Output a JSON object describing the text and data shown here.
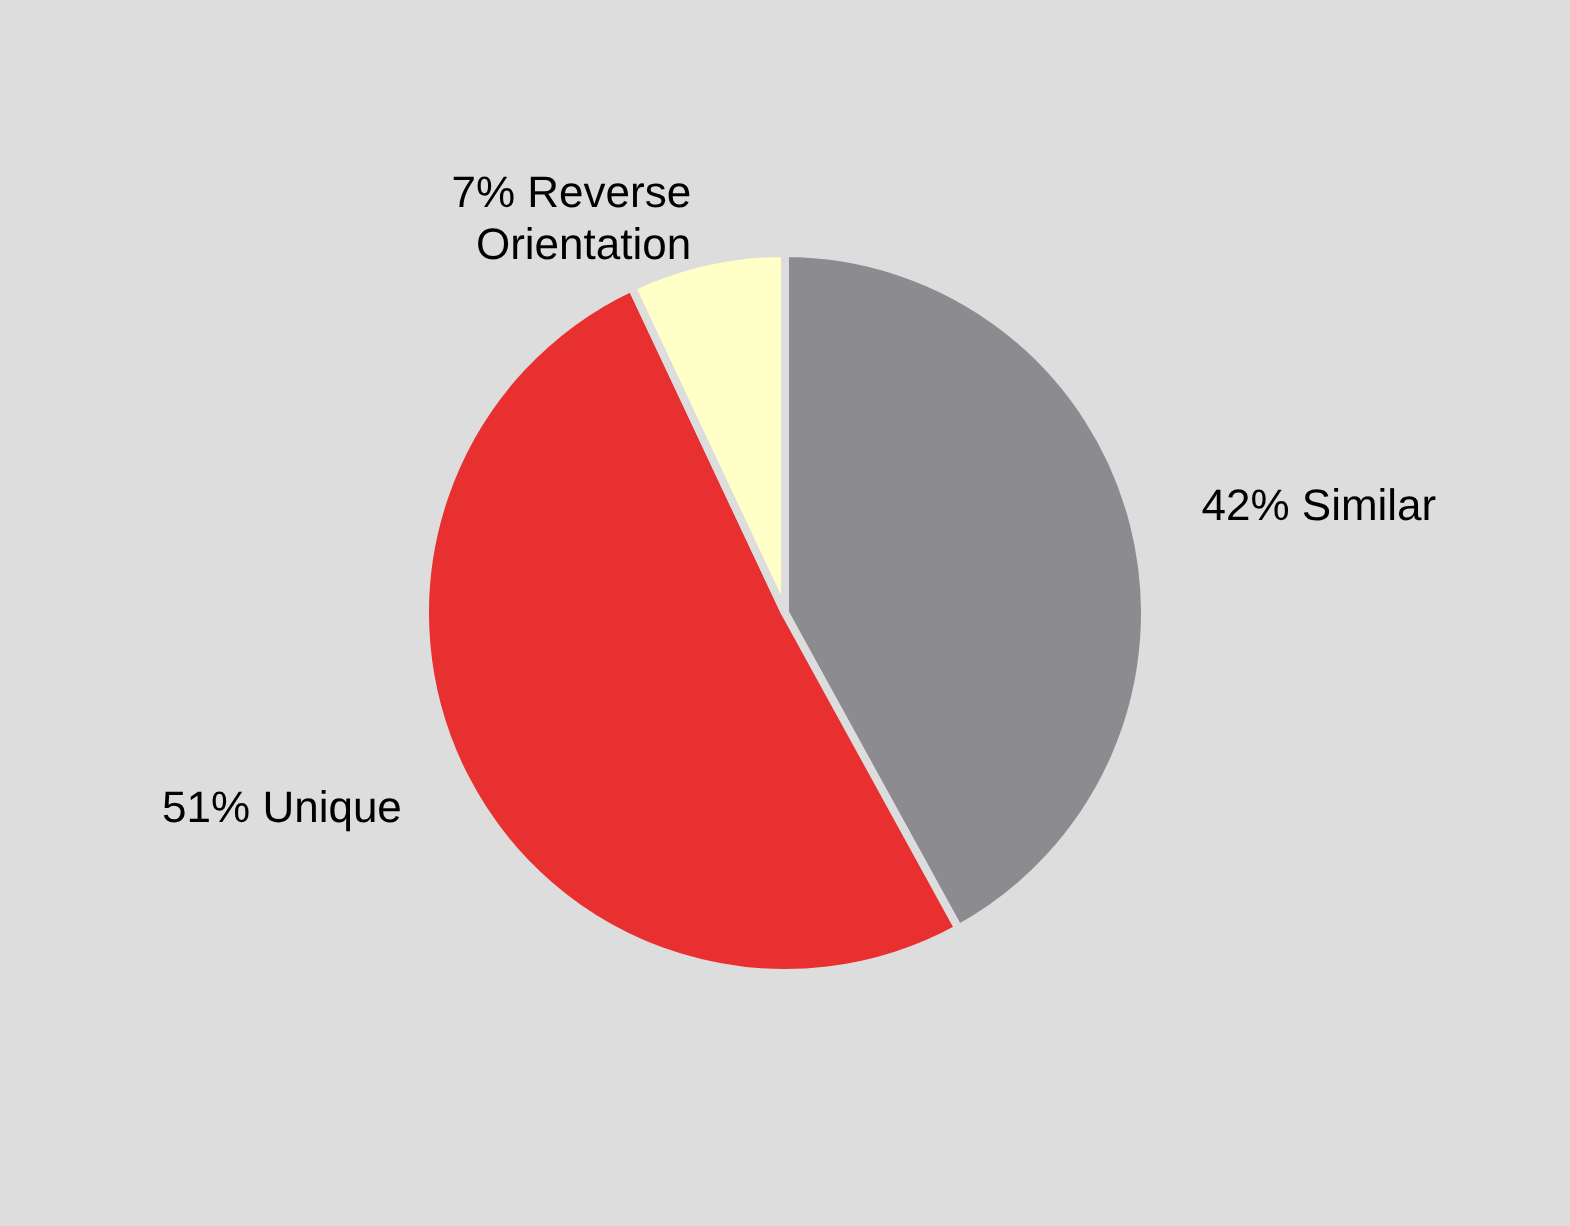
{
  "chart_data": {
    "type": "pie",
    "categories": [
      "Similar",
      "Unique",
      "Reverse Orientation"
    ],
    "values": [
      42,
      51,
      7
    ],
    "colors": [
      "#8c8c90",
      "#e83030",
      "#ffffc8"
    ],
    "value_labels": [
      "42%",
      "51%",
      "7%"
    ],
    "legend": false
  }
}
